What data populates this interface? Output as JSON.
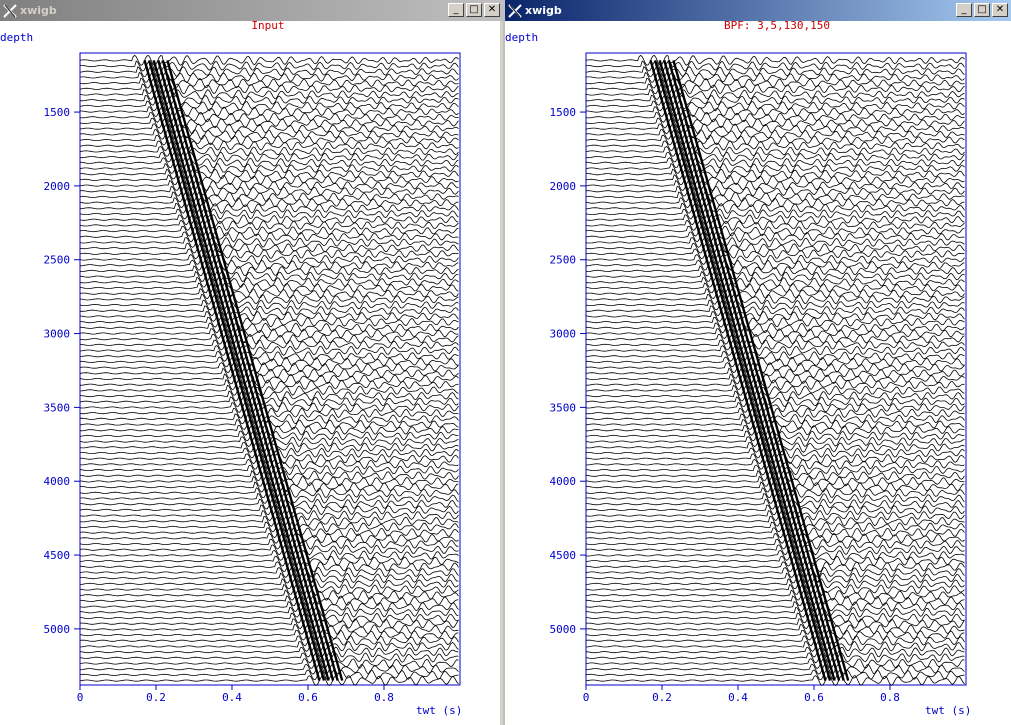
{
  "windows": [
    {
      "id": "left",
      "title": "xwigb",
      "active": false,
      "plot_title": "Input",
      "y_axis_label": "depth",
      "x_axis_label": "twt (s)",
      "y_ticks": [
        "1500",
        "2000",
        "2500",
        "3000",
        "3500",
        "4000",
        "4500",
        "5000"
      ],
      "x_ticks": [
        "0",
        "0.2",
        "0.4",
        "0.6",
        "0.8"
      ]
    },
    {
      "id": "right",
      "title": "xwigb",
      "active": true,
      "plot_title": "BPF: 3,5,130,150",
      "y_axis_label": "depth",
      "x_axis_label": "twt (s)",
      "y_ticks": [
        "1500",
        "2000",
        "2500",
        "3000",
        "3500",
        "4000",
        "4500",
        "5000"
      ],
      "x_ticks": [
        "0",
        "0.2",
        "0.4",
        "0.6",
        "0.8"
      ]
    }
  ],
  "window_buttons": {
    "minimize": "_",
    "maximize": "□",
    "close": "✕"
  },
  "colors": {
    "axis": "#0000cc",
    "title": "#cc0000",
    "trace": "#000000",
    "active_title_bar": "#0a246a",
    "inactive_title_bar": "#808080"
  },
  "chart_data": [
    {
      "type": "line",
      "title": "Input",
      "xlabel": "twt (s)",
      "ylabel": "depth",
      "xlim": [
        0,
        1.0
      ],
      "ylim": [
        1100,
        5380
      ],
      "y_inverted": true,
      "x_ticks": [
        0,
        0.2,
        0.4,
        0.6,
        0.8
      ],
      "y_ticks": [
        1500,
        2000,
        2500,
        3000,
        3500,
        4000,
        4500,
        5000
      ],
      "trace_count": 110,
      "first_break": {
        "depth": [
          1150,
          5350
        ],
        "twt": [
          0.17,
          0.63
        ]
      }
    },
    {
      "type": "line",
      "title": "BPF: 3,5,130,150",
      "xlabel": "twt (s)",
      "ylabel": "depth",
      "xlim": [
        0,
        1.0
      ],
      "ylim": [
        1100,
        5380
      ],
      "y_inverted": true,
      "x_ticks": [
        0,
        0.2,
        0.4,
        0.6,
        0.8
      ],
      "y_ticks": [
        1500,
        2000,
        2500,
        3000,
        3500,
        4000,
        4500,
        5000
      ],
      "trace_count": 110,
      "first_break": {
        "depth": [
          1150,
          5350
        ],
        "twt": [
          0.17,
          0.63
        ]
      }
    }
  ]
}
